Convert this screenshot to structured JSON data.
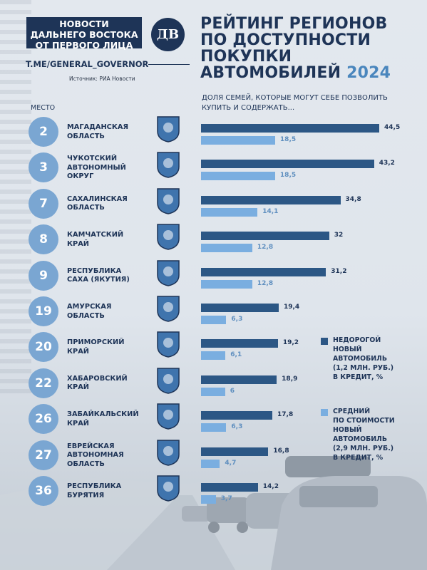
{
  "brand": {
    "name_lines": [
      "НОВОСТИ",
      "ДАЛЬНЕГО ВОСТОКА",
      "ОТ ПЕРВОГО ЛИЦА"
    ],
    "logo_text": "ДВ",
    "telegram": "T.ME/GENERAL_GOVERNOR"
  },
  "source": "Источник: РИА Новости",
  "place_label": "МЕСТО",
  "colors": {
    "navy": "#1e3457",
    "bar_dark": "#2c5785",
    "bar_light": "#7aaee0",
    "badge": "#7aa6d2"
  },
  "chart_data": {
    "type": "bar",
    "orientation": "horizontal",
    "title_lines": [
      "РЕЙТИНГ РЕГИОНОВ",
      "ПО ДОСТУПНОСТИ",
      "ПОКУПКИ"
    ],
    "title_last_line": "АВТОМОБИЛЕЙ",
    "title_year": "2024",
    "subtitle_lines": [
      "ДОЛЯ СЕМЕЙ, КОТОРЫЕ МОГУТ СЕБЕ ПОЗВОЛИТЬ",
      "КУПИТЬ И СОДЕРЖАТЬ..."
    ],
    "xlim": [
      0,
      50
    ],
    "grid": false,
    "legend_position": "right",
    "categories": [
      {
        "place": "2",
        "lines": [
          "МАГАДАНСКАЯ",
          "ОБЛАСТЬ"
        ]
      },
      {
        "place": "3",
        "lines": [
          "ЧУКОТСКИЙ",
          "АВТОНОМНЫЙ",
          "ОКРУГ"
        ]
      },
      {
        "place": "7",
        "lines": [
          "САХАЛИНСКАЯ",
          "ОБЛАСТЬ"
        ]
      },
      {
        "place": "8",
        "lines": [
          "КАМЧАТСКИЙ",
          "КРАЙ"
        ]
      },
      {
        "place": "9",
        "lines": [
          "РЕСПУБЛИКА",
          "САХА (ЯКУТИЯ)"
        ]
      },
      {
        "place": "19",
        "lines": [
          "АМУРСКАЯ",
          "ОБЛАСТЬ"
        ]
      },
      {
        "place": "20",
        "lines": [
          "ПРИМОРСКИЙ",
          "КРАЙ"
        ]
      },
      {
        "place": "22",
        "lines": [
          "ХАБАРОВСКИЙ",
          "КРАЙ"
        ]
      },
      {
        "place": "26",
        "lines": [
          "ЗАБАЙКАЛЬСКИЙ",
          "КРАЙ"
        ]
      },
      {
        "place": "27",
        "lines": [
          "ЕВРЕЙСКАЯ",
          "АВТОНОМНАЯ",
          "ОБЛАСТЬ"
        ]
      },
      {
        "place": "36",
        "lines": [
          "РЕСПУБЛИКА",
          "БУРЯТИЯ"
        ]
      }
    ],
    "series": [
      {
        "key": "cheap",
        "color": "#2c5785",
        "legend_lines": [
          "НЕДОРОГОЙ",
          "НОВЫЙ",
          "АВТОМОБИЛЬ",
          "(1,2 МЛН. РУБ.)",
          "В КРЕДИТ, %"
        ],
        "values": [
          44.5,
          43.2,
          34.8,
          32,
          31.2,
          19.4,
          19.2,
          18.9,
          17.8,
          16.8,
          14.2
        ],
        "labels": [
          "44,5",
          "43,2",
          "34,8",
          "32",
          "31,2",
          "19,4",
          "19,2",
          "18,9",
          "17,8",
          "16,8",
          "14,2"
        ]
      },
      {
        "key": "average",
        "color": "#7aaee0",
        "legend_lines": [
          "СРЕДНИЙ",
          "ПО СТОИМОСТИ",
          "НОВЫЙ",
          "АВТОМОБИЛЬ",
          "(2,9 МЛН. РУБ.)",
          "В КРЕДИТ, %"
        ],
        "values": [
          18.5,
          18.5,
          14.1,
          12.8,
          12.8,
          6.3,
          6.1,
          6,
          6.3,
          4.7,
          3.7
        ],
        "labels": [
          "18,5",
          "18,5",
          "14,1",
          "12,8",
          "12,8",
          "6,3",
          "6,1",
          "6",
          "6,3",
          "4,7",
          "3,7"
        ]
      }
    ]
  }
}
